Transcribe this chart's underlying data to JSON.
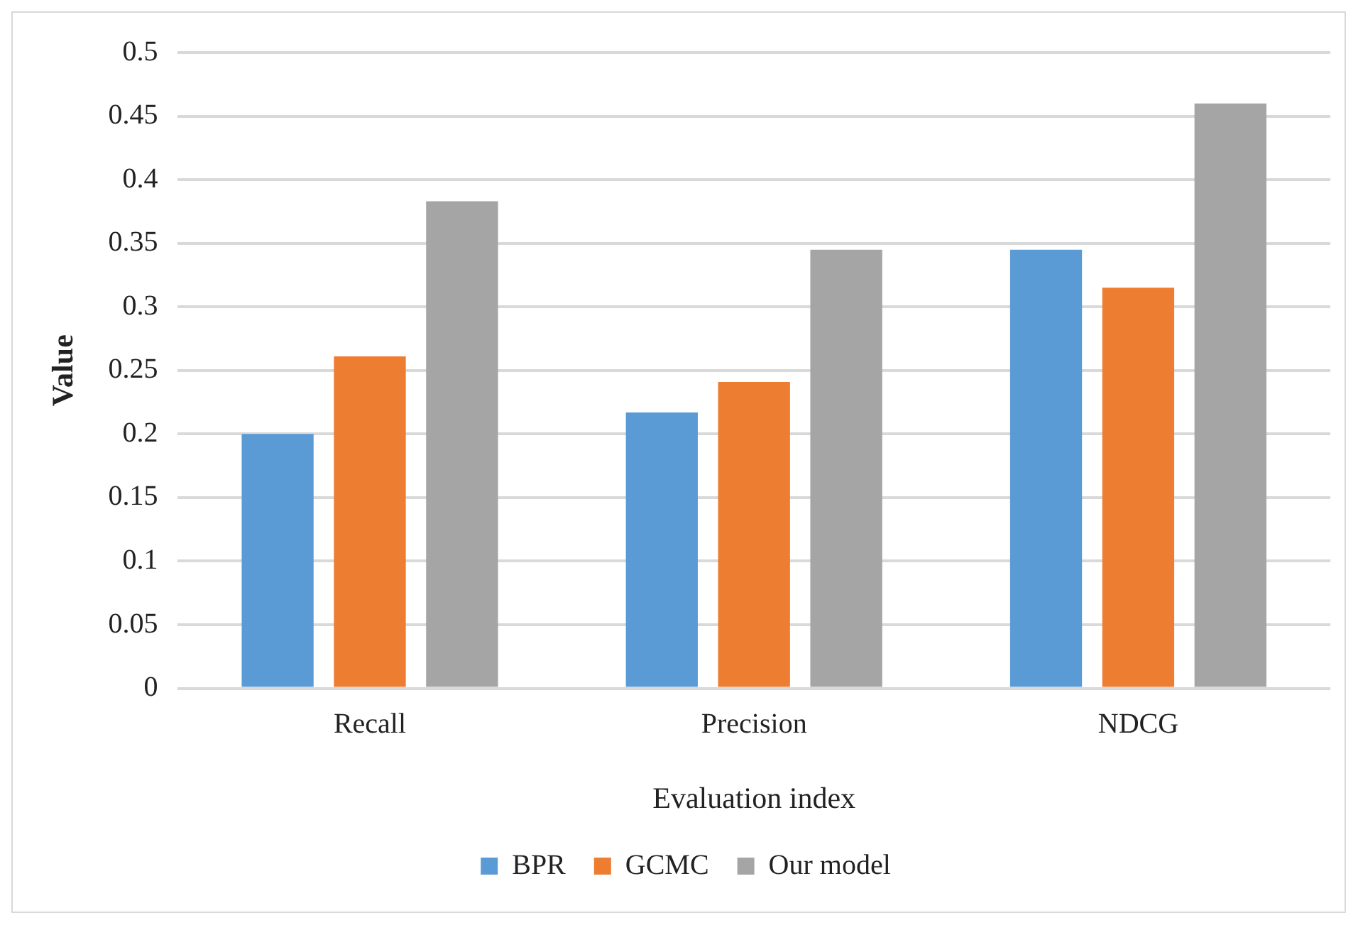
{
  "chart_data": {
    "type": "bar",
    "xlabel": "Evaluation index",
    "ylabel": "Value",
    "categories": [
      "Recall",
      "Precision",
      "NDCG"
    ],
    "series": [
      {
        "name": "BPR",
        "color": "#5b9bd5",
        "values": [
          0.2,
          0.217,
          0.345
        ]
      },
      {
        "name": "GCMC",
        "color": "#ed7d31",
        "values": [
          0.261,
          0.241,
          0.315
        ]
      },
      {
        "name": "Our model",
        "color": "#a5a5a5",
        "values": [
          0.383,
          0.345,
          0.46
        ]
      }
    ],
    "ylim": [
      0,
      0.5
    ],
    "yticks": [
      0,
      0.05,
      0.1,
      0.15,
      0.2,
      0.25,
      0.3,
      0.35,
      0.4,
      0.45,
      0.5
    ],
    "grid": "y",
    "legend": "bottom"
  }
}
